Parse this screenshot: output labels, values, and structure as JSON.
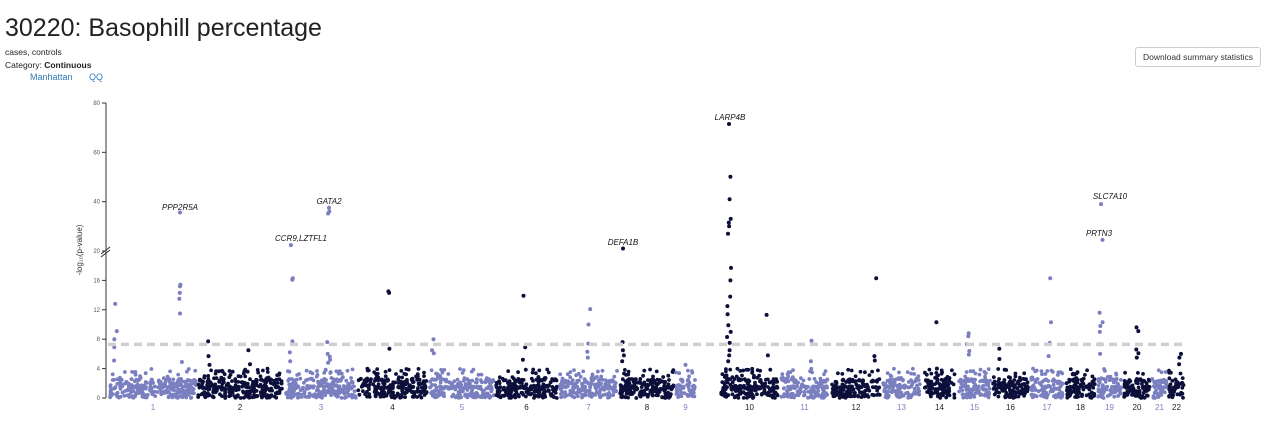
{
  "page": {
    "title": "30220: Basophill percentage",
    "subtitle": "cases, controls",
    "category_label": "Category: ",
    "category_value": "Continuous",
    "tabs": [
      {
        "label": "Manhattan"
      },
      {
        "label": "QQ"
      }
    ],
    "download_label": "Download summary statistics"
  },
  "colors": {
    "odd_chrom": "#7a7fc0",
    "even_chrom": "#0b0f3a",
    "threshold": "#d0d0d0",
    "link": "#337ab7"
  },
  "chart_data": {
    "type": "scatter",
    "subtype": "manhattan",
    "ylabel": "-log₁₀(p-value)",
    "y_ticks": [
      0,
      4,
      8,
      12,
      16,
      20,
      40,
      60,
      80
    ],
    "y_axis_break_at": 20,
    "y_range": [
      0,
      80
    ],
    "significance_threshold": 7.3,
    "chromosomes": [
      "1",
      "2",
      "3",
      "4",
      "5",
      "6",
      "7",
      "8",
      "9",
      "10",
      "11",
      "12",
      "13",
      "14",
      "15",
      "16",
      "17",
      "18",
      "19",
      "20",
      "21",
      "22"
    ],
    "annotations": [
      {
        "label": "PPP2R5A",
        "chrom": "1",
        "value": 35.6
      },
      {
        "label": "GATA2",
        "chrom": "3",
        "value": 37.5
      },
      {
        "label": "CCR9,LZTFL1",
        "chrom": "3",
        "value": 22.4
      },
      {
        "label": "LARP4B",
        "chrom": "10",
        "value": 71.5
      },
      {
        "label": "DEFA1B",
        "chrom": "8",
        "value": 21.0
      },
      {
        "label": "SLC7A10",
        "chrom": "19",
        "value": 39.0
      },
      {
        "label": "PRTN3",
        "chrom": "19",
        "value": 24.5
      }
    ],
    "peaks": [
      {
        "chrom": "1",
        "values": [
          12.8,
          9.1,
          8.0,
          6.9,
          5.1
        ]
      },
      {
        "chrom": "1",
        "values": [
          35.6,
          15.4,
          15.2,
          14.3,
          13.5,
          11.5,
          4.9
        ]
      },
      {
        "chrom": "2",
        "values": [
          7.7,
          5.7,
          4.5
        ]
      },
      {
        "chrom": "2",
        "values": [
          6.5,
          4.6
        ]
      },
      {
        "chrom": "3",
        "values": [
          22.4,
          16.3,
          16.1,
          7.7,
          6.2,
          5.0
        ]
      },
      {
        "chrom": "3",
        "values": [
          37.5,
          36.0,
          35.2,
          7.6,
          6.0,
          5.6,
          5.2,
          4.8
        ]
      },
      {
        "chrom": "4",
        "values": [
          14.5,
          14.3,
          6.7
        ]
      },
      {
        "chrom": "5",
        "values": [
          6.1,
          8.0,
          6.5
        ]
      },
      {
        "chrom": "6",
        "values": [
          13.9,
          6.9,
          5.2
        ]
      },
      {
        "chrom": "7",
        "values": [
          10.0,
          12.1,
          7.4,
          6.3,
          5.5
        ]
      },
      {
        "chrom": "8",
        "values": [
          21.0,
          7.6,
          6.5,
          5.8,
          5.0
        ]
      },
      {
        "chrom": "9",
        "values": [
          4.5
        ]
      },
      {
        "chrom": "10",
        "values": [
          71.5,
          50.1,
          41.0,
          33.0,
          31.5,
          30.0,
          27.0,
          17.7,
          16.0,
          13.8,
          12.5,
          11.4,
          9.9,
          9.0,
          8.3,
          7.5,
          6.5,
          5.8,
          5.0
        ]
      },
      {
        "chrom": "10",
        "values": [
          11.3,
          5.8
        ]
      },
      {
        "chrom": "11",
        "values": [
          7.8,
          5.0
        ]
      },
      {
        "chrom": "12",
        "values": [
          16.3,
          5.7,
          5.1
        ]
      },
      {
        "chrom": "14",
        "values": [
          10.3,
          4.0
        ]
      },
      {
        "chrom": "15",
        "values": [
          8.4,
          8.8,
          7.3,
          6.4,
          5.9
        ]
      },
      {
        "chrom": "16",
        "values": [
          6.7,
          5.3
        ]
      },
      {
        "chrom": "17",
        "values": [
          16.3,
          10.3,
          7.5,
          5.7
        ]
      },
      {
        "chrom": "19",
        "values": [
          39.0,
          24.5,
          11.6,
          10.3,
          9.8,
          9.0,
          7.3,
          6.0
        ]
      },
      {
        "chrom": "20",
        "values": [
          9.6,
          9.1,
          6.6,
          6.1,
          5.5
        ]
      },
      {
        "chrom": "22",
        "values": [
          6.0,
          5.5,
          4.6
        ]
      }
    ]
  }
}
